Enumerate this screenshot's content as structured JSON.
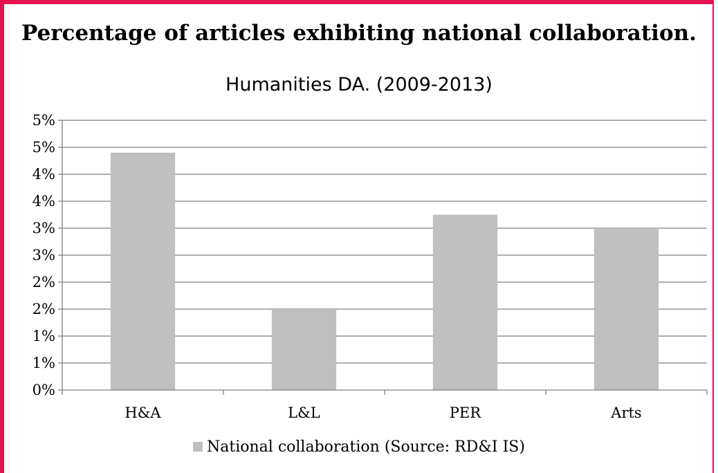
{
  "chart_data": {
    "type": "bar",
    "title": "Percentage of articles exhibiting national collaboration.",
    "subtitle": "Humanities DA. (2009-2013)",
    "categories": [
      "H&A",
      "L&L",
      "PER",
      "Arts"
    ],
    "series": [
      {
        "name": "National collaboration (Source: RD&I IS)",
        "values": [
          4.4,
          1.5,
          3.25,
          3.0
        ],
        "color": "#bfbfbf"
      }
    ],
    "y_tick_labels": [
      "0%",
      "1%",
      "1%",
      "2%",
      "2%",
      "3%",
      "3%",
      "4%",
      "4%",
      "5%",
      "5%"
    ],
    "ylim": [
      0,
      5.0
    ],
    "grid": true,
    "legend_position": "bottom"
  }
}
